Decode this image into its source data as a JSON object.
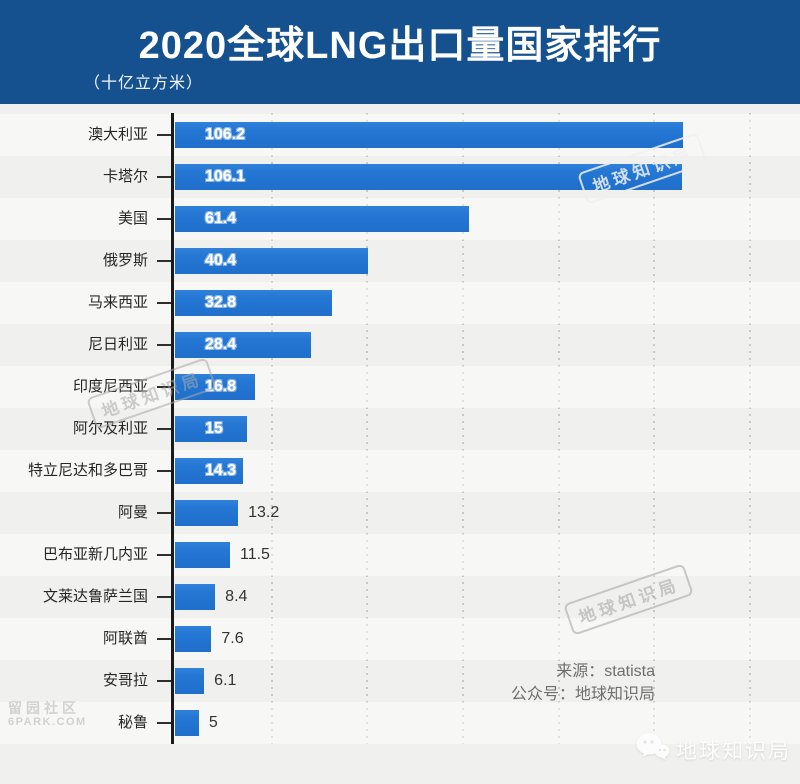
{
  "title": "2020全球LNG出口量国家排行",
  "unit_label": "（十亿立方米）",
  "chart_data": {
    "type": "bar",
    "orientation": "horizontal",
    "title": "2020全球LNG出口量国家排行",
    "unit": "十亿立方米",
    "xlabel": "",
    "ylabel": "",
    "xlim": [
      0,
      120
    ],
    "gridline_values": [
      20,
      40,
      60,
      80,
      100,
      120
    ],
    "grid": "dotted-vertical",
    "categories": [
      "澳大利亚",
      "卡塔尔",
      "美国",
      "俄罗斯",
      "马来西亚",
      "尼日利亚",
      "印度尼西亚",
      "阿尔及利亚",
      "特立尼达和多巴哥",
      "阿曼",
      "巴布亚新几内亚",
      "文莱达鲁萨兰国",
      "阿联酋",
      "安哥拉",
      "秘鲁"
    ],
    "values": [
      106.2,
      106.1,
      61.4,
      40.4,
      32.8,
      28.4,
      16.8,
      15,
      14.3,
      13.2,
      11.5,
      8.4,
      7.6,
      6.1,
      5
    ],
    "rows": [
      {
        "label": "澳大利亚",
        "value": 106.2,
        "display": "106.2",
        "value_inside": true
      },
      {
        "label": "卡塔尔",
        "value": 106.1,
        "display": "106.1",
        "value_inside": true
      },
      {
        "label": "美国",
        "value": 61.4,
        "display": "61.4",
        "value_inside": true
      },
      {
        "label": "俄罗斯",
        "value": 40.4,
        "display": "40.4",
        "value_inside": true
      },
      {
        "label": "马来西亚",
        "value": 32.8,
        "display": "32.8",
        "value_inside": true
      },
      {
        "label": "尼日利亚",
        "value": 28.4,
        "display": "28.4",
        "value_inside": true
      },
      {
        "label": "印度尼西亚",
        "value": 16.8,
        "display": "16.8",
        "value_inside": true
      },
      {
        "label": "阿尔及利亚",
        "value": 15,
        "display": "15",
        "value_inside": true
      },
      {
        "label": "特立尼达和多巴哥",
        "value": 14.3,
        "display": "14.3",
        "value_inside": true
      },
      {
        "label": "阿曼",
        "value": 13.2,
        "display": "13.2",
        "value_inside": false
      },
      {
        "label": "巴布亚新几内亚",
        "value": 11.5,
        "display": "11.5",
        "value_inside": false
      },
      {
        "label": "文莱达鲁萨兰国",
        "value": 8.4,
        "display": "8.4",
        "value_inside": false
      },
      {
        "label": "阿联酋",
        "value": 7.6,
        "display": "7.6",
        "value_inside": false
      },
      {
        "label": "安哥拉",
        "value": 6.1,
        "display": "6.1",
        "value_inside": false
      },
      {
        "label": "秘鲁",
        "value": 5,
        "display": "5",
        "value_inside": false
      }
    ]
  },
  "source": {
    "line1": "来源：statista",
    "line2": "公众号：地球知识局"
  },
  "watermarks": {
    "stamp_text": "地球知识局",
    "wechat_label": "地球知识局",
    "corner_line1": "留园社区",
    "corner_line2": "6PARK.COM"
  },
  "colors": {
    "header_bg": "#15518f",
    "bar": "#2477d3",
    "chart_bg": "#f0f0ef",
    "axis": "#1a1a1a",
    "gridline": "#c9c9c9",
    "category_label": "#262626",
    "value_inside": "#ffffff",
    "value_outside": "#333333",
    "source_text": "#6e6e6e"
  }
}
